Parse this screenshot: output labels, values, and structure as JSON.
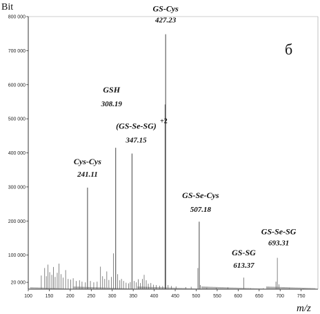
{
  "chart_data": {
    "type": "bar",
    "ylabel": "Bit",
    "xlabel": "m/z",
    "panel_letter": "б",
    "xlim": [
      100,
      790
    ],
    "ylim": [
      0,
      800000
    ],
    "x_ticks": [
      100,
      150,
      200,
      250,
      300,
      350,
      400,
      450,
      500,
      550,
      600,
      650,
      700,
      750
    ],
    "y_ticks": [
      20000,
      100000,
      200000,
      300000,
      400000,
      500000,
      600000,
      700000,
      800000
    ],
    "y_tick_labels": [
      "20 000",
      "100 000",
      "200 000",
      "300 000",
      "400 000",
      "500 000",
      "600 000",
      "700 000",
      "800 000"
    ],
    "peaks": [
      {
        "x": 131,
        "y": 40000
      },
      {
        "x": 139,
        "y": 62000
      },
      {
        "x": 143,
        "y": 38000
      },
      {
        "x": 147,
        "y": 72000
      },
      {
        "x": 151,
        "y": 50000
      },
      {
        "x": 156,
        "y": 42000
      },
      {
        "x": 160,
        "y": 65000
      },
      {
        "x": 164,
        "y": 36000
      },
      {
        "x": 169,
        "y": 48000
      },
      {
        "x": 173,
        "y": 75000
      },
      {
        "x": 178,
        "y": 44000
      },
      {
        "x": 183,
        "y": 34000
      },
      {
        "x": 189,
        "y": 56000
      },
      {
        "x": 195,
        "y": 30000
      },
      {
        "x": 201,
        "y": 28000
      },
      {
        "x": 207,
        "y": 32000
      },
      {
        "x": 214,
        "y": 24000
      },
      {
        "x": 222,
        "y": 26000
      },
      {
        "x": 228,
        "y": 22000
      },
      {
        "x": 236,
        "y": 20000
      },
      {
        "x": 241.11,
        "y": 298000
      },
      {
        "x": 248,
        "y": 24000
      },
      {
        "x": 256,
        "y": 20000
      },
      {
        "x": 264,
        "y": 22000
      },
      {
        "x": 272,
        "y": 66000
      },
      {
        "x": 277,
        "y": 38000
      },
      {
        "x": 282,
        "y": 30000
      },
      {
        "x": 287,
        "y": 52000
      },
      {
        "x": 292,
        "y": 27000
      },
      {
        "x": 298,
        "y": 36000
      },
      {
        "x": 303,
        "y": 105000
      },
      {
        "x": 308.19,
        "y": 415000
      },
      {
        "x": 313,
        "y": 44000
      },
      {
        "x": 318,
        "y": 26000
      },
      {
        "x": 322,
        "y": 30000
      },
      {
        "x": 327,
        "y": 24000
      },
      {
        "x": 333,
        "y": 19000
      },
      {
        "x": 339,
        "y": 17000
      },
      {
        "x": 343,
        "y": 21000
      },
      {
        "x": 347.15,
        "y": 398000
      },
      {
        "x": 352,
        "y": 24000
      },
      {
        "x": 357,
        "y": 20000
      },
      {
        "x": 362,
        "y": 29000
      },
      {
        "x": 367,
        "y": 18000
      },
      {
        "x": 372,
        "y": 30000
      },
      {
        "x": 376,
        "y": 42000
      },
      {
        "x": 381,
        "y": 26000
      },
      {
        "x": 386,
        "y": 16000
      },
      {
        "x": 392,
        "y": 18000
      },
      {
        "x": 398,
        "y": 13000
      },
      {
        "x": 405,
        "y": 12000
      },
      {
        "x": 413,
        "y": 10000
      },
      {
        "x": 420,
        "y": 9000
      },
      {
        "x": 426,
        "y": 542000
      },
      {
        "x": 427.23,
        "y": 748000
      },
      {
        "x": 433,
        "y": 12000
      },
      {
        "x": 441,
        "y": 9000
      },
      {
        "x": 452,
        "y": 8000
      },
      {
        "x": 475,
        "y": 6000
      },
      {
        "x": 488,
        "y": 7000
      },
      {
        "x": 504,
        "y": 62000
      },
      {
        "x": 507.18,
        "y": 198000
      },
      {
        "x": 510,
        "y": 12000
      },
      {
        "x": 525,
        "y": 4000
      },
      {
        "x": 548,
        "y": 4000
      },
      {
        "x": 575,
        "y": 5000
      },
      {
        "x": 613.37,
        "y": 34000
      },
      {
        "x": 630,
        "y": 3000
      },
      {
        "x": 660,
        "y": 3000
      },
      {
        "x": 690,
        "y": 22000
      },
      {
        "x": 693.31,
        "y": 92000
      },
      {
        "x": 697,
        "y": 14000
      },
      {
        "x": 722,
        "y": 3000
      },
      {
        "x": 755,
        "y": 2000
      }
    ],
    "annotations": [
      {
        "name": "Cys-Cys",
        "mz": "241.11",
        "x": 241.11,
        "y": 298000
      },
      {
        "name": "GSH",
        "mz": "308.19",
        "x": 308.19,
        "y": 415000
      },
      {
        "name": "(GS-Se-SG)",
        "mz": "347.15",
        "charge": "+2",
        "x": 347.15,
        "y": 398000
      },
      {
        "name": "GS-Cys",
        "mz": "427.23",
        "x": 427.23,
        "y": 748000
      },
      {
        "name": "GS-Se-Cys",
        "mz": "507.18",
        "x": 507.18,
        "y": 198000
      },
      {
        "name": "GS-SG",
        "mz": "613.37",
        "x": 613.37,
        "y": 34000
      },
      {
        "name": "GS-Se-SG",
        "mz": "693.31",
        "x": 693.31,
        "y": 92000
      }
    ],
    "grid": false,
    "legend": "none"
  }
}
